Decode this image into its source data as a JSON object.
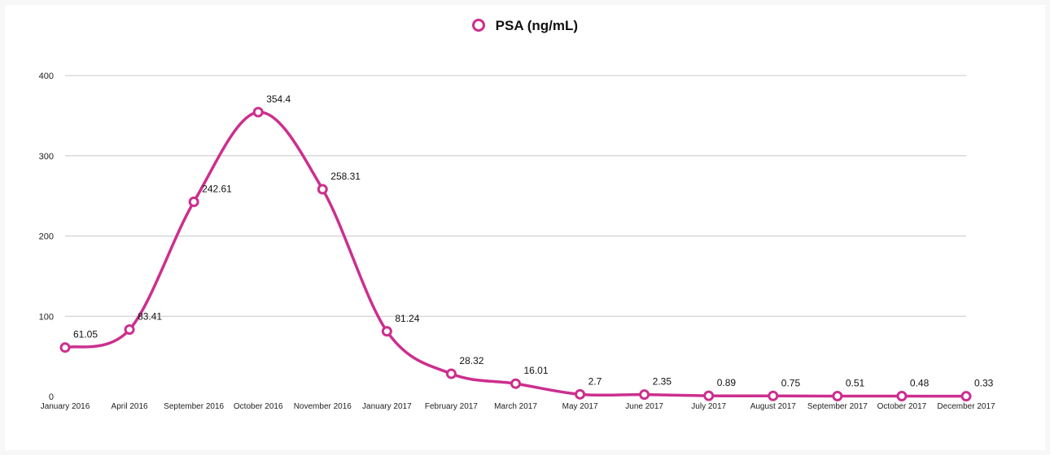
{
  "chart_data": {
    "type": "line",
    "title": "",
    "xlabel": "",
    "ylabel": "",
    "ylim": [
      0,
      400
    ],
    "yticks": [
      0,
      100,
      200,
      300,
      400
    ],
    "grid": true,
    "legend_position": "top-center",
    "categories": [
      "January 2016",
      "April 2016",
      "September 2016",
      "October 2016",
      "November 2016",
      "January 2017",
      "February 2017",
      "March 2017",
      "May 2017",
      "June 2017",
      "July 2017",
      "August 2017",
      "September 2017",
      "October 2017",
      "December 2017"
    ],
    "series": [
      {
        "name": "PSA (ng/mL)",
        "color": "#cc2f8e",
        "values": [
          61.05,
          83.41,
          242.61,
          354.4,
          258.31,
          81.24,
          28.32,
          16.01,
          2.7,
          2.35,
          0.89,
          0.75,
          0.51,
          0.48,
          0.33
        ],
        "labels": [
          "61.05",
          "83.41",
          "242.61",
          "354.4",
          "258.31",
          "81.24",
          "28.32",
          "16.01",
          "2.7",
          "2.35",
          "0.89",
          "0.75",
          "0.51",
          "0.48",
          "0.33"
        ]
      }
    ]
  }
}
